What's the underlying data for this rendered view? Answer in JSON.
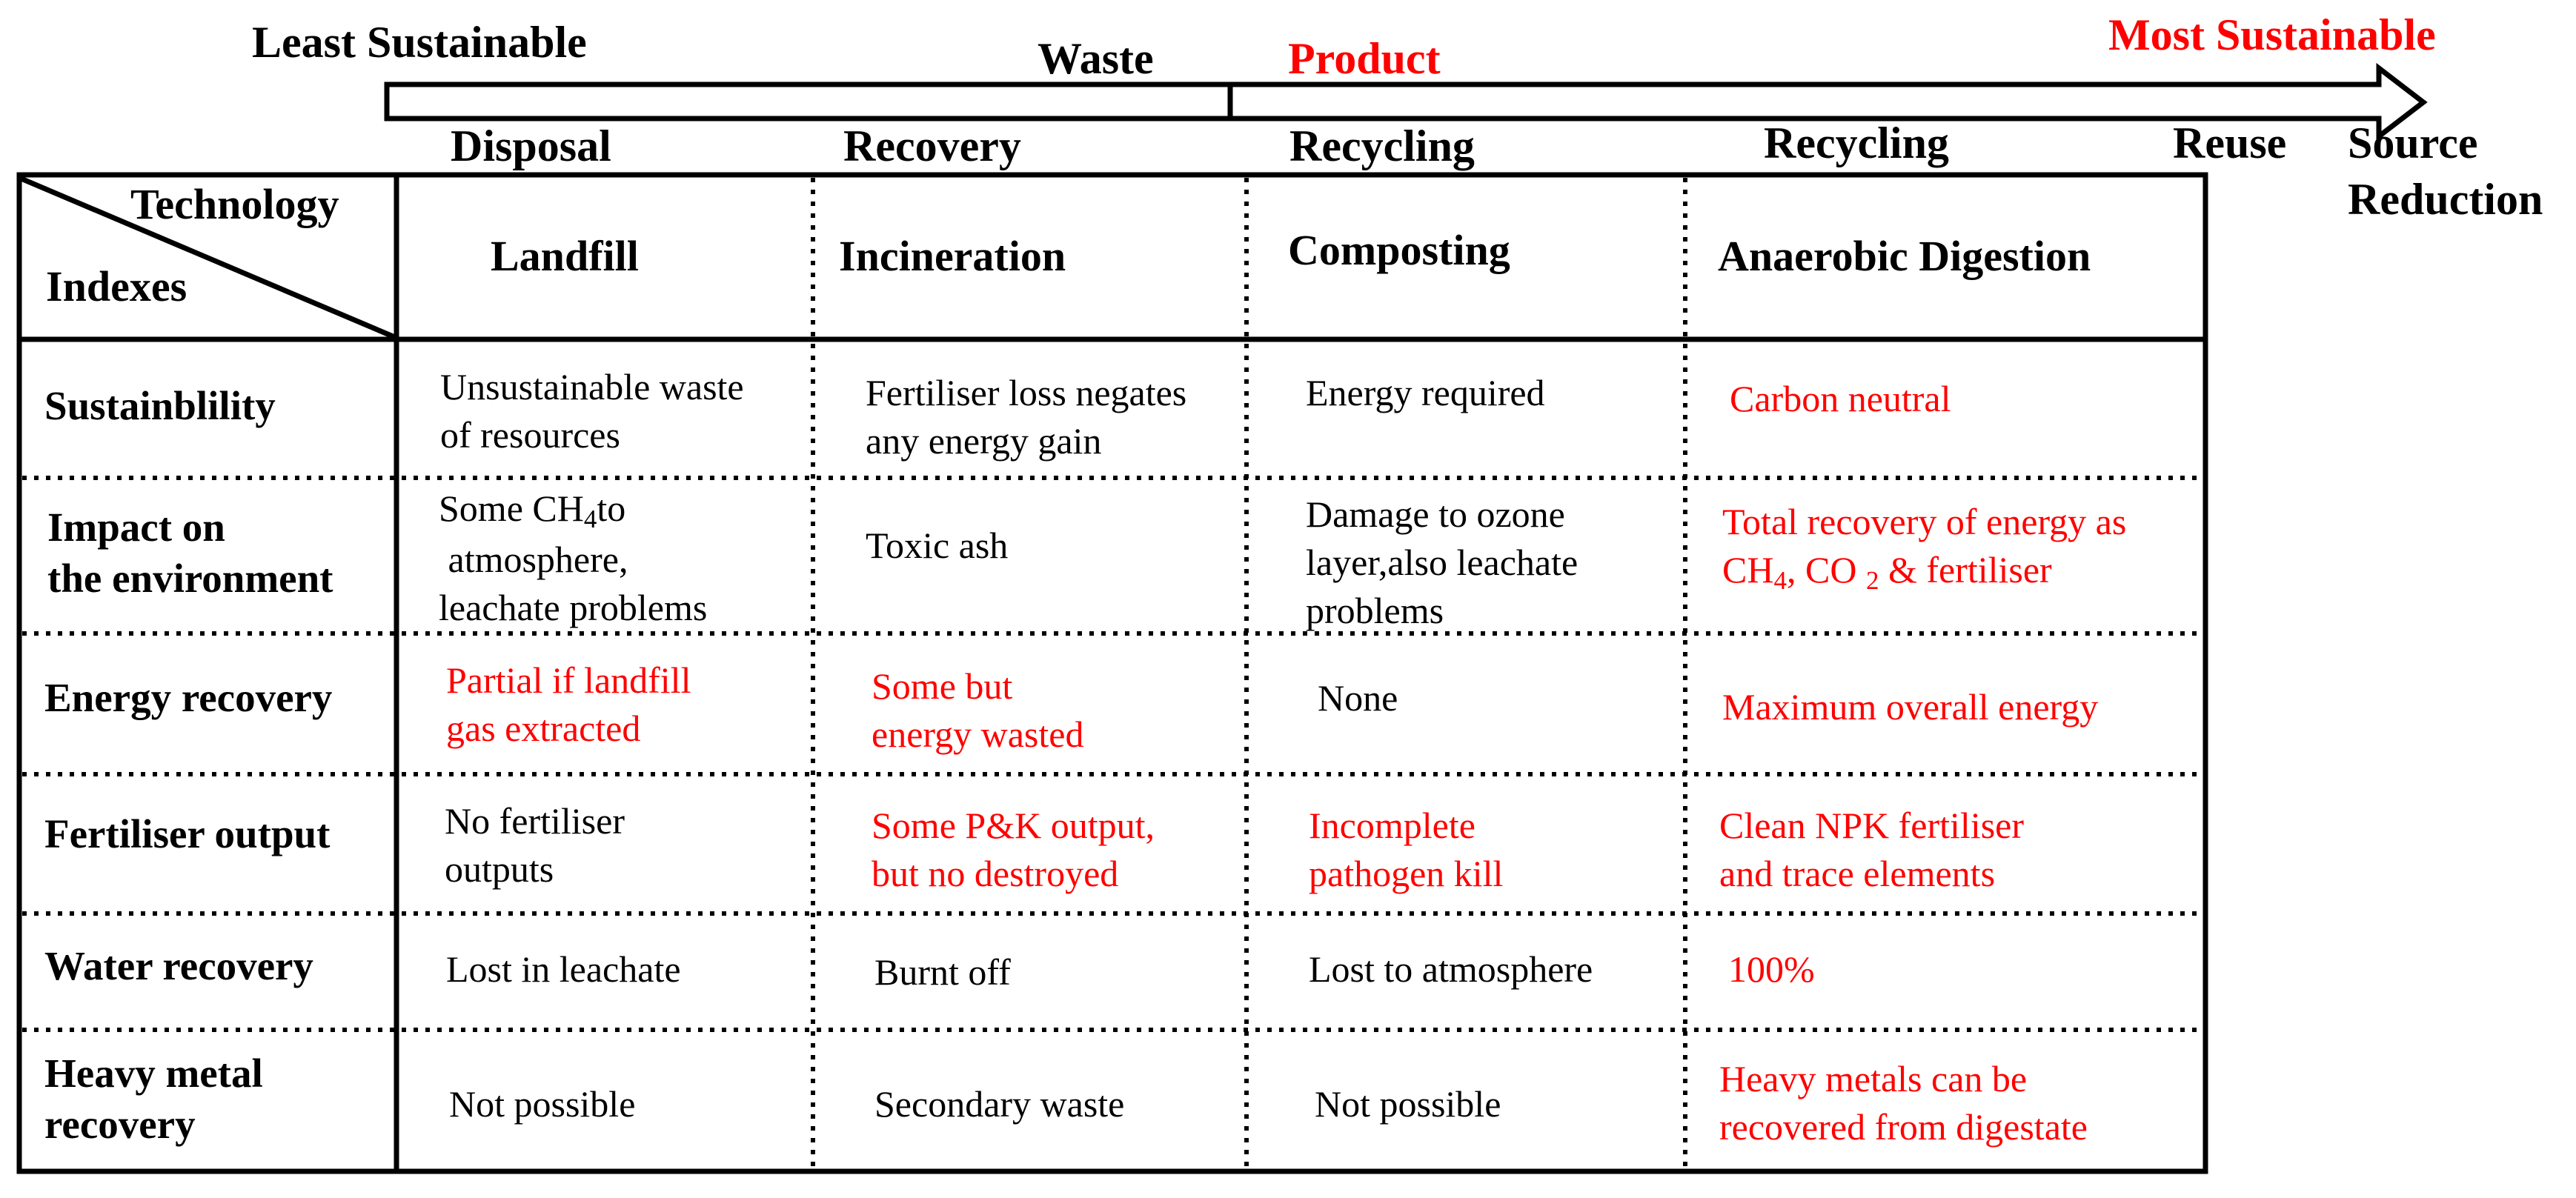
{
  "colors": {
    "accent": "#ff0000",
    "text": "#000000",
    "background": "#ffffff"
  },
  "scale": {
    "least_label": "Least Sustainable",
    "most_label": "Most Sustainable",
    "waste_label": "Waste",
    "product_label": "Product",
    "stages": [
      "Disposal",
      "Recovery",
      "Recycling",
      "Recycling",
      "Reuse"
    ],
    "source_reduction": [
      "Source",
      "Reduction"
    ]
  },
  "table": {
    "corner_top": "Technology",
    "corner_bottom": "Indexes",
    "technologies": [
      "Landfill",
      "Incineration",
      "Composting",
      "Anaerobic Digestion"
    ],
    "rows": [
      {
        "label": [
          "Sustainblility"
        ],
        "cells": [
          {
            "lines": [
              "Unsustainable waste",
              "of resources"
            ],
            "highlight": false
          },
          {
            "lines": [
              "Fertiliser loss negates",
              "any energy gain"
            ],
            "highlight": false
          },
          {
            "lines": [
              "Energy required"
            ],
            "highlight": false
          },
          {
            "lines": [
              "Carbon neutral"
            ],
            "highlight": true
          }
        ]
      },
      {
        "label": [
          "Impact on",
          "the environment"
        ],
        "cells": [
          {
            "lines": [
              "Some CH4to",
              " atmosphere,",
              "leachate problems"
            ],
            "highlight": false
          },
          {
            "lines": [
              "Toxic ash"
            ],
            "highlight": false
          },
          {
            "lines": [
              "Damage to ozone",
              "layer,also leachate",
              "problems"
            ],
            "highlight": false
          },
          {
            "lines": [
              "Total recovery of energy as",
              "CH4, CO 2 & fertiliser"
            ],
            "highlight": true
          }
        ]
      },
      {
        "label": [
          "Energy recovery"
        ],
        "cells": [
          {
            "lines": [
              "Partial if landfill",
              "gas extracted"
            ],
            "highlight": true
          },
          {
            "lines": [
              "Some but",
              "energy wasted"
            ],
            "highlight": true
          },
          {
            "lines": [
              "None"
            ],
            "highlight": false
          },
          {
            "lines": [
              "Maximum overall energy"
            ],
            "highlight": true
          }
        ]
      },
      {
        "label": [
          "Fertiliser output"
        ],
        "cells": [
          {
            "lines": [
              "No fertiliser",
              "outputs"
            ],
            "highlight": false
          },
          {
            "lines": [
              "Some P&K output,",
              "but no destroyed"
            ],
            "highlight": true
          },
          {
            "lines": [
              "Incomplete",
              "pathogen kill"
            ],
            "highlight": true
          },
          {
            "lines": [
              "Clean NPK fertiliser",
              "and trace elements"
            ],
            "highlight": true
          }
        ]
      },
      {
        "label": [
          "Water recovery"
        ],
        "cells": [
          {
            "lines": [
              "Lost in leachate"
            ],
            "highlight": false
          },
          {
            "lines": [
              "Burnt off"
            ],
            "highlight": false
          },
          {
            "lines": [
              "Lost to atmosphere"
            ],
            "highlight": false
          },
          {
            "lines": [
              "100%"
            ],
            "highlight": true
          }
        ]
      },
      {
        "label": [
          "Heavy metal",
          "recovery"
        ],
        "cells": [
          {
            "lines": [
              "Not possible"
            ],
            "highlight": false
          },
          {
            "lines": [
              "Secondary waste"
            ],
            "highlight": false
          },
          {
            "lines": [
              "Not possible"
            ],
            "highlight": false
          },
          {
            "lines": [
              "Heavy metals can be",
              "recovered from digestate"
            ],
            "highlight": true
          }
        ]
      }
    ]
  }
}
